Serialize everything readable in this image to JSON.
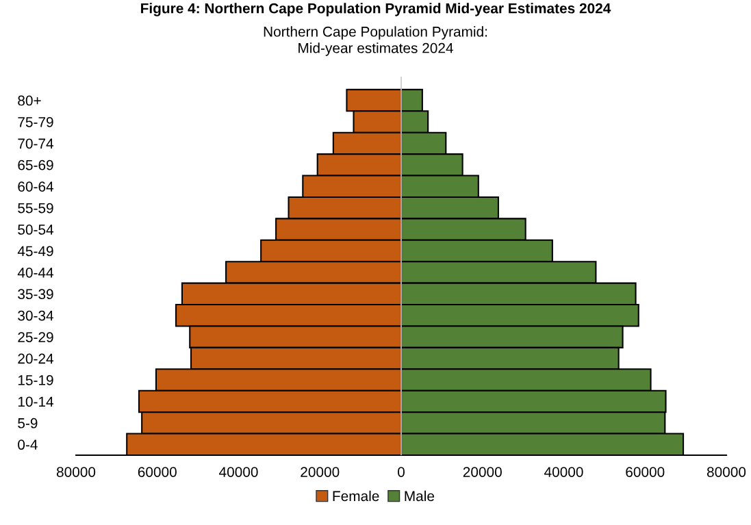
{
  "chart_data": {
    "type": "bar",
    "orientation": "horizontal",
    "title": "Northern Cape Population Pyramid:\nMid-year estimates 2024",
    "annotations": [
      "Figure 4: Northern Cape Population Pyramid Mid-year Estimates 2024"
    ],
    "categories": [
      "80+",
      "75-79",
      "70-74",
      "65-69",
      "60-64",
      "55-59",
      "50-54",
      "45-49",
      "40-44",
      "35-39",
      "30-34",
      "25-29",
      "20-24",
      "15-19",
      "10-14",
      "5-9",
      "0-4"
    ],
    "series": [
      {
        "name": "Female",
        "color": "#c55a11",
        "values": [
          -13400,
          -11700,
          -16700,
          -20600,
          -24200,
          -27700,
          -30800,
          -34500,
          -43100,
          -53900,
          -55400,
          -52000,
          -51700,
          -60300,
          -64500,
          -63800,
          -67500
        ]
      },
      {
        "name": "Male",
        "color": "#538135",
        "values": [
          5200,
          6600,
          11000,
          15100,
          19000,
          23900,
          30600,
          37200,
          47900,
          57700,
          58400,
          54500,
          53500,
          61400,
          65100,
          64900,
          69400
        ]
      }
    ],
    "xlim": [
      -80000,
      80000
    ],
    "xticks": [
      {
        "value": -80000,
        "label": "80000"
      },
      {
        "value": -60000,
        "label": "60000"
      },
      {
        "value": -40000,
        "label": "40000"
      },
      {
        "value": -20000,
        "label": "20000"
      },
      0,
      20000,
      40000,
      60000,
      80000
    ],
    "ref_lines": [
      {
        "axis": "x",
        "value": 0,
        "color": "#c8c8c8"
      }
    ],
    "stacked": true,
    "legend": "bottom"
  }
}
